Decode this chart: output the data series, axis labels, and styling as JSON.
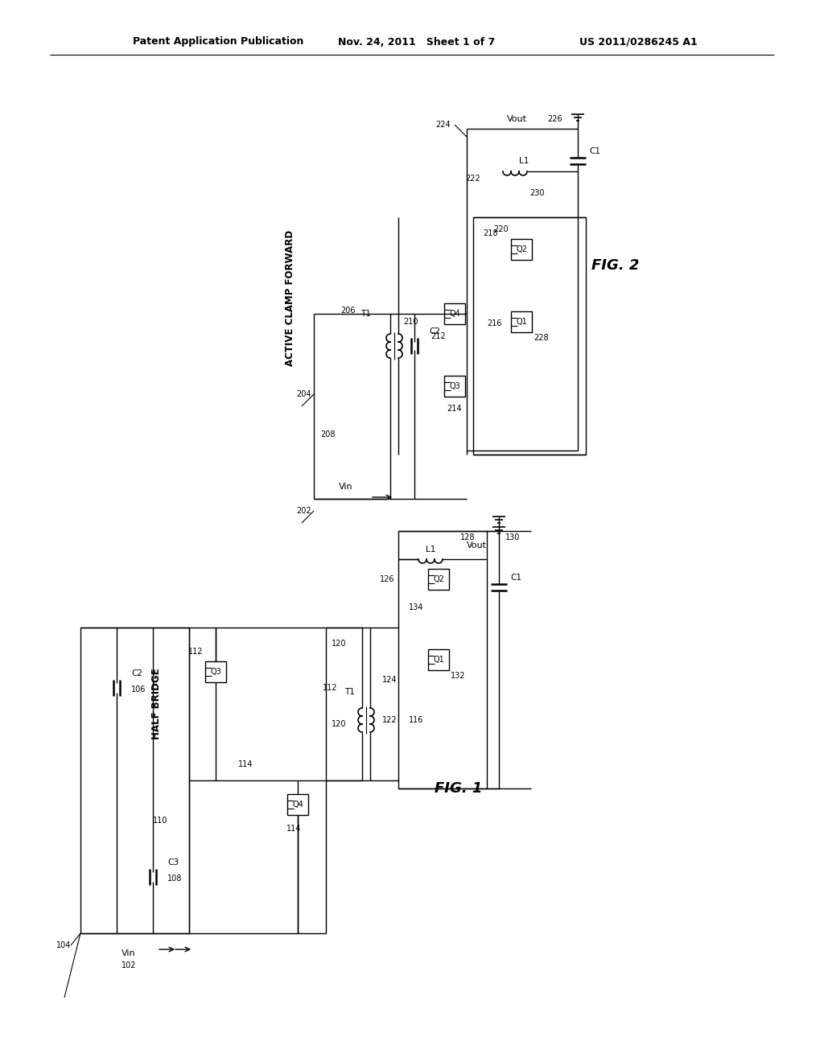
{
  "bg_color": "#ffffff",
  "header_left": "Patent Application Publication",
  "header_mid": "Nov. 24, 2011   Sheet 1 of 7",
  "header_right": "US 2011/0286245 A1",
  "fig1_label": "FIG. 1",
  "fig2_label": "FIG. 2"
}
